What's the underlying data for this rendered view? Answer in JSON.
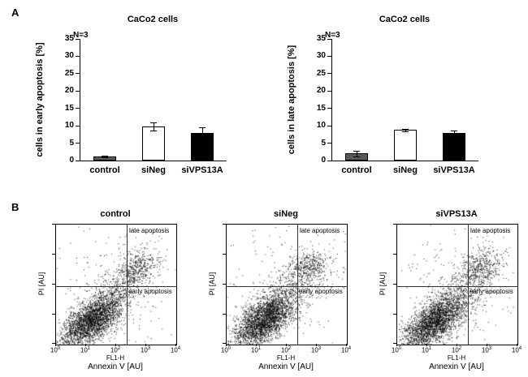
{
  "panels": {
    "a": {
      "label": "A"
    },
    "b": {
      "label": "B"
    }
  },
  "chart_data": [
    {
      "type": "bar",
      "title": "CaCo2 cells",
      "annotation": "N=3",
      "ylabel": "cells in early apoptosis [%]",
      "categories": [
        "control",
        "siNeg",
        "siVPS13A"
      ],
      "values": [
        1.2,
        9.8,
        8
      ],
      "errors": [
        0.3,
        1.2,
        1.6
      ],
      "bar_fills": [
        "#595959",
        "#ffffff",
        "#000000"
      ],
      "ylim": [
        0,
        35
      ],
      "yticks": [
        0,
        5,
        10,
        15,
        20,
        25,
        30,
        35
      ],
      "grid": false
    },
    {
      "type": "bar",
      "title": "CaCo2 cells",
      "annotation": "N=3",
      "ylabel": "cells in late apoptosis [%]",
      "categories": [
        "control",
        "siNeg",
        "siVPS13A"
      ],
      "values": [
        2,
        8.8,
        8
      ],
      "errors": [
        0.8,
        0.4,
        0.6
      ],
      "bar_fills": [
        "#595959",
        "#ffffff",
        "#000000"
      ],
      "ylim": [
        0,
        35
      ],
      "yticks": [
        0,
        5,
        10,
        15,
        20,
        25,
        30,
        35
      ],
      "grid": false
    },
    {
      "type": "scatter",
      "title": "control",
      "xlabel": "Annexin V [AU]",
      "x_channel": "FL1-H",
      "ylabel": "PI [AU]",
      "x_scale": "log",
      "x_range_decades": [
        0,
        4
      ],
      "x_tick_exponents": [
        0,
        1,
        2,
        3,
        4
      ],
      "quadrants": {
        "late_label": "late apoptosis",
        "early_label": "early apoptosis",
        "x_divider_decade": 2.35,
        "y_divider_decade": 1.95
      },
      "seed": 11,
      "clusters": [
        {
          "n": 2600,
          "cx": 1.15,
          "cy": 0.8,
          "sx": 0.5,
          "sy": 0.45,
          "corr": 0.6
        },
        {
          "n": 420,
          "cx": 1.95,
          "cy": 1.55,
          "sx": 0.5,
          "sy": 0.5,
          "corr": 0.5
        },
        {
          "n": 450,
          "cx": 2.7,
          "cy": 2.55,
          "sx": 0.38,
          "sy": 0.33,
          "corr": 0.3
        },
        {
          "n": 220,
          "cx": 2.0,
          "cy": 2.0,
          "sx": 1.2,
          "sy": 1.2,
          "corr": 0.0
        }
      ]
    },
    {
      "type": "scatter",
      "title": "siNeg",
      "xlabel": "Annexin V [AU]",
      "x_channel": "FL1-H",
      "ylabel": "PI [AU]",
      "x_scale": "log",
      "x_range_decades": [
        0,
        4
      ],
      "x_tick_exponents": [
        0,
        1,
        2,
        3,
        4
      ],
      "quadrants": {
        "late_label": "late apoptosis",
        "early_label": "early apoptosis",
        "x_divider_decade": 2.35,
        "y_divider_decade": 1.95
      },
      "seed": 22,
      "clusters": [
        {
          "n": 2600,
          "cx": 1.2,
          "cy": 0.8,
          "sx": 0.5,
          "sy": 0.45,
          "corr": 0.6
        },
        {
          "n": 430,
          "cx": 2.0,
          "cy": 1.55,
          "sx": 0.5,
          "sy": 0.5,
          "corr": 0.5
        },
        {
          "n": 470,
          "cx": 2.7,
          "cy": 2.55,
          "sx": 0.38,
          "sy": 0.33,
          "corr": 0.3
        },
        {
          "n": 220,
          "cx": 2.0,
          "cy": 2.0,
          "sx": 1.2,
          "sy": 1.2,
          "corr": 0.0
        }
      ]
    },
    {
      "type": "scatter",
      "title": "siVPS13A",
      "xlabel": "Annexin V [AU]",
      "x_channel": "FL1-H",
      "ylabel": "PI [AU]",
      "x_scale": "log",
      "x_range_decades": [
        0,
        4
      ],
      "x_tick_exponents": [
        0,
        1,
        2,
        3,
        4
      ],
      "quadrants": {
        "late_label": "late apoptosis",
        "early_label": "early apoptosis",
        "x_divider_decade": 2.35,
        "y_divider_decade": 1.95
      },
      "seed": 33,
      "clusters": [
        {
          "n": 2500,
          "cx": 1.2,
          "cy": 0.75,
          "sx": 0.5,
          "sy": 0.45,
          "corr": 0.6
        },
        {
          "n": 420,
          "cx": 2.05,
          "cy": 1.55,
          "sx": 0.5,
          "sy": 0.5,
          "corr": 0.5
        },
        {
          "n": 480,
          "cx": 2.75,
          "cy": 2.55,
          "sx": 0.38,
          "sy": 0.33,
          "corr": 0.3
        },
        {
          "n": 210,
          "cx": 2.0,
          "cy": 2.0,
          "sx": 1.2,
          "sy": 1.2,
          "corr": 0.0
        }
      ]
    }
  ]
}
